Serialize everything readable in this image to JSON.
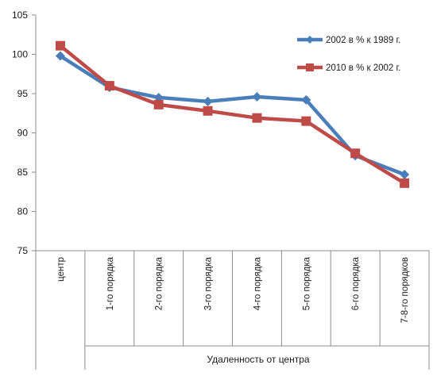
{
  "chart_data": {
    "type": "line",
    "title": "",
    "ylabel": "",
    "xlabel": "Удаленность от центра",
    "ylim": [
      75,
      105
    ],
    "yticks": [
      75,
      80,
      85,
      90,
      95,
      100,
      105
    ],
    "grid": false,
    "legend": "top-right",
    "categories": [
      "центр",
      "1-го порядка",
      "2-го порядка",
      "3-го порядка",
      "4-го порядка",
      "5-го порядка",
      "6-го порядка",
      "7-8-го порядков"
    ],
    "series": [
      {
        "name": "2002 в % к 1989 г.",
        "color": "#4a7ebb",
        "marker": "diamond",
        "values": [
          99.8,
          95.8,
          94.5,
          94.0,
          94.6,
          94.2,
          87.1,
          84.7
        ]
      },
      {
        "name": "2010 в % к 2002 г.",
        "color": "#be4b48",
        "marker": "square",
        "values": [
          101.1,
          96.0,
          93.6,
          92.8,
          91.9,
          91.5,
          87.4,
          83.6
        ]
      }
    ]
  }
}
